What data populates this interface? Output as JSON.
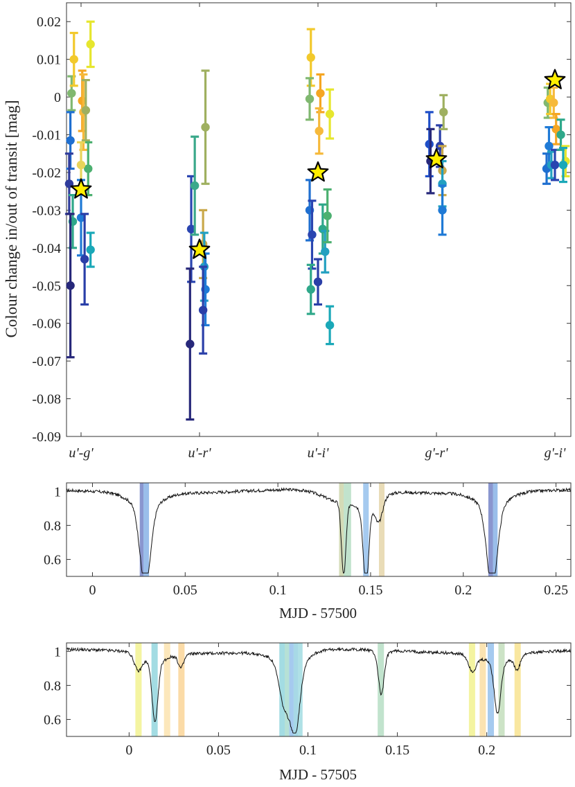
{
  "chart_data": [
    {
      "type": "scatter",
      "ylabel": "Colour change in/out of transit [mag]",
      "ylim": [
        -0.09,
        0.025
      ],
      "yticks": [
        0.02,
        0.01,
        0,
        -0.01,
        -0.02,
        -0.03,
        -0.04,
        -0.05,
        -0.06,
        -0.07,
        -0.08,
        -0.09
      ],
      "ytick_labels": [
        "0.02",
        "0.01",
        "0",
        "-0.01",
        "-0.02",
        "-0.03",
        "-0.04",
        "-0.05",
        "-0.06",
        "-0.07",
        "-0.08",
        "-0.09"
      ],
      "categories": [
        "u'-g'",
        "u'-r'",
        "u'-i'",
        "g'-r'",
        "g'-i'"
      ],
      "grid": false,
      "points": [
        {
          "cat": 0,
          "dx": -0.08,
          "y": 0.001,
          "err": 0.0045,
          "color": "#80b870"
        },
        {
          "cat": 0,
          "dx": -0.06,
          "y": 0.01,
          "err": 0.007,
          "color": "#f2c92c"
        },
        {
          "cat": 0,
          "dx": -0.09,
          "y": -0.0115,
          "err": 0.0075,
          "color": "#1f6fd0"
        },
        {
          "cat": 0,
          "dx": -0.1,
          "y": -0.023,
          "err": 0.008,
          "color": "#2f3c9c"
        },
        {
          "cat": 0,
          "dx": -0.07,
          "y": -0.033,
          "err": 0.007,
          "color": "#2fa88a"
        },
        {
          "cat": 0,
          "dx": -0.09,
          "y": -0.05,
          "err": 0.019,
          "color": "#27287a"
        },
        {
          "cat": 0,
          "dx": 0.01,
          "y": -0.001,
          "err": 0.008,
          "color": "#f5a623"
        },
        {
          "cat": 0,
          "dx": 0.02,
          "y": -0.004,
          "err": 0.01,
          "color": "#f6b93b"
        },
        {
          "cat": 0,
          "dx": 0.04,
          "y": -0.0035,
          "err": 0.008,
          "color": "#9fb060"
        },
        {
          "cat": 0,
          "dx": 0.06,
          "y": -0.019,
          "err": 0.007,
          "color": "#4cb070"
        },
        {
          "cat": 0,
          "dx": 0.0,
          "y": -0.018,
          "err": 0.006,
          "color": "#e8d45a"
        },
        {
          "cat": 0,
          "dx": 0.0,
          "y": -0.032,
          "err": 0.01,
          "color": "#1f7ad6"
        },
        {
          "cat": 0,
          "dx": 0.03,
          "y": -0.043,
          "err": 0.012,
          "color": "#2a3fa8"
        },
        {
          "cat": 0,
          "dx": 0.08,
          "y": -0.0405,
          "err": 0.0045,
          "color": "#1aa8b8"
        },
        {
          "cat": 0,
          "dx": 0.08,
          "y": 0.014,
          "err": 0.006,
          "color": "#e6e62e"
        },
        {
          "cat": 1,
          "dx": -0.07,
          "y": -0.035,
          "err": 0.014,
          "color": "#2a45b0"
        },
        {
          "cat": 1,
          "dx": -0.08,
          "y": -0.0655,
          "err": 0.02,
          "color": "#27287a"
        },
        {
          "cat": 1,
          "dx": -0.04,
          "y": -0.0235,
          "err": 0.013,
          "color": "#3aa88a"
        },
        {
          "cat": 1,
          "dx": 0.05,
          "y": -0.008,
          "err": 0.015,
          "color": "#9fb060"
        },
        {
          "cat": 1,
          "dx": 0.03,
          "y": -0.039,
          "err": 0.009,
          "color": "#c9a84a"
        },
        {
          "cat": 1,
          "dx": 0.04,
          "y": -0.045,
          "err": 0.009,
          "color": "#22a0c0"
        },
        {
          "cat": 1,
          "dx": 0.05,
          "y": -0.051,
          "err": 0.0095,
          "color": "#1f7ad6"
        },
        {
          "cat": 1,
          "dx": 0.03,
          "y": -0.0565,
          "err": 0.0115,
          "color": "#2a3fa8"
        },
        {
          "cat": 2,
          "dx": -0.06,
          "y": 0.0105,
          "err": 0.0075,
          "color": "#f2c92c"
        },
        {
          "cat": 2,
          "dx": -0.07,
          "y": -0.0005,
          "err": 0.0055,
          "color": "#80b870"
        },
        {
          "cat": 2,
          "dx": 0.02,
          "y": 0.001,
          "err": 0.005,
          "color": "#f5a623"
        },
        {
          "cat": 2,
          "dx": 0.01,
          "y": -0.009,
          "err": 0.006,
          "color": "#f6b93b"
        },
        {
          "cat": 2,
          "dx": 0.1,
          "y": -0.0045,
          "err": 0.0065,
          "color": "#e6e62e"
        },
        {
          "cat": 2,
          "dx": -0.07,
          "y": -0.03,
          "err": 0.008,
          "color": "#1f6fd0"
        },
        {
          "cat": 2,
          "dx": -0.05,
          "y": -0.0365,
          "err": 0.009,
          "color": "#2a45b0"
        },
        {
          "cat": 2,
          "dx": -0.06,
          "y": -0.051,
          "err": 0.0065,
          "color": "#2fa88a"
        },
        {
          "cat": 2,
          "dx": 0.0,
          "y": -0.049,
          "err": 0.006,
          "color": "#2a3fa8"
        },
        {
          "cat": 2,
          "dx": 0.04,
          "y": -0.035,
          "err": 0.0065,
          "color": "#2fa88a"
        },
        {
          "cat": 2,
          "dx": 0.06,
          "y": -0.041,
          "err": 0.0055,
          "color": "#22a0c0"
        },
        {
          "cat": 2,
          "dx": 0.08,
          "y": -0.0315,
          "err": 0.007,
          "color": "#4cb070"
        },
        {
          "cat": 2,
          "dx": 0.1,
          "y": -0.0605,
          "err": 0.005,
          "color": "#1aa8b8"
        },
        {
          "cat": 3,
          "dx": -0.06,
          "y": -0.0125,
          "err": 0.0085,
          "color": "#1f4fc8"
        },
        {
          "cat": 3,
          "dx": -0.05,
          "y": -0.017,
          "err": 0.0085,
          "color": "#27287a"
        },
        {
          "cat": 3,
          "dx": 0.03,
          "y": -0.013,
          "err": 0.0055,
          "color": "#2a3fa8"
        },
        {
          "cat": 3,
          "dx": 0.05,
          "y": -0.0195,
          "err": 0.0065,
          "color": "#c9a84a"
        },
        {
          "cat": 3,
          "dx": 0.05,
          "y": -0.023,
          "err": 0.006,
          "color": "#22a0c0"
        },
        {
          "cat": 3,
          "dx": 0.05,
          "y": -0.03,
          "err": 0.0065,
          "color": "#1f7ad6"
        },
        {
          "cat": 3,
          "dx": 0.06,
          "y": -0.004,
          "err": 0.0045,
          "color": "#9fb060"
        },
        {
          "cat": 4,
          "dx": -0.06,
          "y": -0.0015,
          "err": 0.004,
          "color": "#80b870"
        },
        {
          "cat": 4,
          "dx": -0.04,
          "y": -0.0005,
          "err": 0.004,
          "color": "#f2c92c"
        },
        {
          "cat": 4,
          "dx": -0.01,
          "y": -0.0015,
          "err": 0.004,
          "color": "#f6b93b"
        },
        {
          "cat": 4,
          "dx": 0.01,
          "y": -0.0085,
          "err": 0.004,
          "color": "#f5a623"
        },
        {
          "cat": 4,
          "dx": -0.05,
          "y": -0.013,
          "err": 0.005,
          "color": "#1f7ad6"
        },
        {
          "cat": 4,
          "dx": -0.07,
          "y": -0.019,
          "err": 0.004,
          "color": "#1f6fd0"
        },
        {
          "cat": 4,
          "dx": -0.03,
          "y": -0.018,
          "err": 0.0035,
          "color": "#22a0c0"
        },
        {
          "cat": 4,
          "dx": 0.0,
          "y": -0.018,
          "err": 0.004,
          "color": "#2a45b0"
        },
        {
          "cat": 4,
          "dx": 0.05,
          "y": -0.01,
          "err": 0.004,
          "color": "#2fa88a"
        },
        {
          "cat": 4,
          "dx": 0.09,
          "y": -0.017,
          "err": 0.004,
          "color": "#e6e62e"
        },
        {
          "cat": 4,
          "dx": 0.07,
          "y": -0.018,
          "err": 0.0045,
          "color": "#1aa8b8"
        }
      ],
      "stars": [
        {
          "cat": 0,
          "dx": 0.0,
          "y": -0.0245
        },
        {
          "cat": 1,
          "dx": 0.0,
          "y": -0.0405
        },
        {
          "cat": 2,
          "dx": 0.0,
          "y": -0.02
        },
        {
          "cat": 3,
          "dx": 0.0,
          "y": -0.0165
        },
        {
          "cat": 4,
          "dx": 0.0,
          "y": 0.0045
        }
      ]
    },
    {
      "type": "line",
      "xlabel": "MJD - 57500",
      "xlim": [
        -0.014,
        0.258
      ],
      "ylim": [
        0.5,
        1.05
      ],
      "xticks": [
        0,
        0.05,
        0.1,
        0.15,
        0.2,
        0.25
      ],
      "xtick_labels": [
        "0",
        "0.05",
        "0.1",
        "0.15",
        "0.2",
        "0.25"
      ],
      "yticks": [
        1,
        0.8,
        0.6
      ],
      "ytick_labels": [
        "1",
        "0.8",
        "0.6"
      ],
      "dips": [
        {
          "center": 0.0285,
          "depth": 0.47,
          "width": 0.0028,
          "wing": 0.008
        },
        {
          "center": 0.1355,
          "depth": 0.43,
          "width": 0.0012,
          "wing": 0.01
        },
        {
          "center": 0.1475,
          "depth": 0.44,
          "width": 0.0014,
          "wing": 0.004
        },
        {
          "center": 0.1545,
          "depth": 0.13,
          "width": 0.002,
          "wing": 0.005
        },
        {
          "center": 0.2155,
          "depth": 0.47,
          "width": 0.0028,
          "wing": 0.008
        }
      ],
      "bands": [
        {
          "x0": 0.0255,
          "x1": 0.0275,
          "color": "#2a3fa8",
          "alpha": 0.55
        },
        {
          "x0": 0.0275,
          "x1": 0.0305,
          "color": "#1f6fd0",
          "alpha": 0.45
        },
        {
          "x0": 0.133,
          "x1": 0.1355,
          "color": "#9fb060",
          "alpha": 0.45
        },
        {
          "x0": 0.1355,
          "x1": 0.1395,
          "color": "#4cb070",
          "alpha": 0.35
        },
        {
          "x0": 0.146,
          "x1": 0.149,
          "color": "#1f7ad6",
          "alpha": 0.4
        },
        {
          "x0": 0.1545,
          "x1": 0.1575,
          "color": "#c9a84a",
          "alpha": 0.4
        },
        {
          "x0": 0.2135,
          "x1": 0.216,
          "color": "#2a3fa8",
          "alpha": 0.55
        },
        {
          "x0": 0.216,
          "x1": 0.2185,
          "color": "#1f6fd0",
          "alpha": 0.45
        }
      ]
    },
    {
      "type": "line",
      "xlabel": "MJD - 57505",
      "xlim": [
        -0.035,
        0.247
      ],
      "ylim": [
        0.5,
        1.05
      ],
      "xticks": [
        0,
        0.05,
        0.1,
        0.15,
        0.2
      ],
      "xtick_labels": [
        "0",
        "0.05",
        "0.1",
        "0.15",
        "0.2"
      ],
      "yticks": [
        1,
        0.8,
        0.6
      ],
      "ytick_labels": [
        "1",
        "0.8",
        "0.6"
      ],
      "dips": [
        {
          "center": 0.005,
          "depth": 0.08,
          "width": 0.002,
          "wing": 0.003
        },
        {
          "center": 0.0145,
          "depth": 0.35,
          "width": 0.0016,
          "wing": 0.006
        },
        {
          "center": 0.029,
          "depth": 0.07,
          "width": 0.0015,
          "wing": 0.003
        },
        {
          "center": 0.087,
          "depth": 0.25,
          "width": 0.003,
          "wing": 0.01
        },
        {
          "center": 0.093,
          "depth": 0.36,
          "width": 0.0025,
          "wing": 0.006
        },
        {
          "center": 0.141,
          "depth": 0.22,
          "width": 0.0015,
          "wing": 0.003
        },
        {
          "center": 0.192,
          "depth": 0.08,
          "width": 0.002,
          "wing": 0.004
        },
        {
          "center": 0.206,
          "depth": 0.3,
          "width": 0.0018,
          "wing": 0.008
        },
        {
          "center": 0.217,
          "depth": 0.07,
          "width": 0.0015,
          "wing": 0.003
        }
      ],
      "bands": [
        {
          "x0": 0.0035,
          "x1": 0.007,
          "color": "#e6e62e",
          "alpha": 0.45
        },
        {
          "x0": 0.0125,
          "x1": 0.016,
          "color": "#1aa8b8",
          "alpha": 0.4
        },
        {
          "x0": 0.0195,
          "x1": 0.023,
          "color": "#f6b93b",
          "alpha": 0.35
        },
        {
          "x0": 0.0275,
          "x1": 0.031,
          "color": "#f5a623",
          "alpha": 0.4
        },
        {
          "x0": 0.084,
          "x1": 0.087,
          "color": "#1aa8b8",
          "alpha": 0.4
        },
        {
          "x0": 0.087,
          "x1": 0.0895,
          "color": "#2fa88a",
          "alpha": 0.35
        },
        {
          "x0": 0.0895,
          "x1": 0.092,
          "color": "#1f7ad6",
          "alpha": 0.4
        },
        {
          "x0": 0.092,
          "x1": 0.0945,
          "color": "#22a0c0",
          "alpha": 0.4
        },
        {
          "x0": 0.0945,
          "x1": 0.097,
          "color": "#1aa8b8",
          "alpha": 0.35
        },
        {
          "x0": 0.139,
          "x1": 0.1425,
          "color": "#4cb070",
          "alpha": 0.35
        },
        {
          "x0": 0.19,
          "x1": 0.1935,
          "color": "#e6e62e",
          "alpha": 0.45
        },
        {
          "x0": 0.196,
          "x1": 0.1995,
          "color": "#f6b93b",
          "alpha": 0.4
        },
        {
          "x0": 0.2005,
          "x1": 0.204,
          "color": "#1f7ad6",
          "alpha": 0.4
        },
        {
          "x0": 0.2065,
          "x1": 0.21,
          "color": "#80b870",
          "alpha": 0.4
        },
        {
          "x0": 0.2155,
          "x1": 0.219,
          "color": "#f2c92c",
          "alpha": 0.45
        }
      ]
    }
  ]
}
